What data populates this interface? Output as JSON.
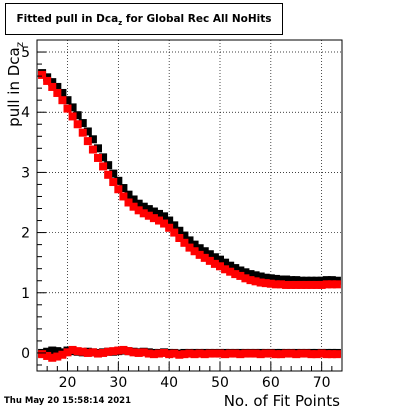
{
  "title": {
    "prefix": "Fitted pull in Dca",
    "subscript": "z",
    "suffix": " for Global Rec All NoHits"
  },
  "timestamp": "Thu May 20 15:58:14 2021",
  "chart_data": {
    "type": "scatter",
    "xlabel": "No. of Fit Points",
    "ylabel": "pull in Dca",
    "ylabel_subscript": "z",
    "xlim": [
      14,
      74
    ],
    "ylim": [
      -0.3,
      5.2
    ],
    "xticks": [
      20,
      30,
      40,
      50,
      60,
      70
    ],
    "yticks": [
      0,
      1,
      2,
      3,
      4,
      5
    ],
    "grid": true,
    "series": [
      {
        "color": "#000000",
        "x": [
          15,
          16,
          17,
          18,
          19,
          20,
          21,
          22,
          23,
          24,
          25,
          26,
          27,
          28,
          29,
          30,
          31,
          32,
          33,
          34,
          35,
          36,
          37,
          38,
          39,
          40,
          41,
          42,
          43,
          44,
          45,
          46,
          47,
          48,
          49,
          50,
          51,
          52,
          53,
          54,
          55,
          56,
          57,
          58,
          59,
          60,
          61,
          62,
          63,
          64,
          65,
          66,
          67,
          68,
          69,
          70,
          71,
          72,
          73
        ],
        "y": [
          4.65,
          4.58,
          4.5,
          4.42,
          4.32,
          4.2,
          4.08,
          3.95,
          3.82,
          3.68,
          3.55,
          3.4,
          3.25,
          3.12,
          2.98,
          2.86,
          2.74,
          2.63,
          2.55,
          2.48,
          2.43,
          2.39,
          2.35,
          2.31,
          2.27,
          2.2,
          2.12,
          2.03,
          1.95,
          1.87,
          1.8,
          1.74,
          1.69,
          1.64,
          1.59,
          1.55,
          1.5,
          1.45,
          1.41,
          1.37,
          1.34,
          1.31,
          1.29,
          1.27,
          1.25,
          1.24,
          1.23,
          1.22,
          1.22,
          1.21,
          1.21,
          1.2,
          1.2,
          1.2,
          1.2,
          1.2,
          1.21,
          1.21,
          1.2
        ]
      },
      {
        "color": "#ff0000",
        "x": [
          15,
          16,
          17,
          18,
          19,
          20,
          21,
          22,
          23,
          24,
          25,
          26,
          27,
          28,
          29,
          30,
          31,
          32,
          33,
          34,
          35,
          36,
          37,
          38,
          39,
          40,
          41,
          42,
          43,
          44,
          45,
          46,
          47,
          48,
          49,
          50,
          51,
          52,
          53,
          54,
          55,
          56,
          57,
          58,
          59,
          60,
          61,
          62,
          63,
          64,
          65,
          66,
          67,
          68,
          69,
          70,
          71,
          72,
          73
        ],
        "y": [
          4.62,
          4.52,
          4.42,
          4.32,
          4.2,
          4.06,
          3.93,
          3.8,
          3.66,
          3.52,
          3.38,
          3.24,
          3.1,
          2.96,
          2.84,
          2.72,
          2.6,
          2.5,
          2.43,
          2.37,
          2.32,
          2.28,
          2.24,
          2.2,
          2.15,
          2.08,
          2.0,
          1.91,
          1.83,
          1.75,
          1.69,
          1.63,
          1.58,
          1.53,
          1.48,
          1.44,
          1.39,
          1.35,
          1.31,
          1.28,
          1.24,
          1.21,
          1.19,
          1.17,
          1.16,
          1.15,
          1.14,
          1.14,
          1.13,
          1.13,
          1.13,
          1.13,
          1.13,
          1.13,
          1.13,
          1.13,
          1.14,
          1.14,
          1.14
        ]
      },
      {
        "color": "#000000",
        "x": [
          15,
          16,
          17,
          18,
          19,
          20,
          21,
          22,
          23,
          24,
          25,
          26,
          27,
          28,
          29,
          30,
          31,
          32,
          33,
          34,
          35,
          36,
          37,
          38,
          39,
          40,
          41,
          42,
          43,
          44,
          45,
          46,
          47,
          48,
          49,
          50,
          51,
          52,
          53,
          54,
          55,
          56,
          57,
          58,
          59,
          60,
          61,
          62,
          63,
          64,
          65,
          66,
          67,
          68,
          69,
          70,
          71,
          72,
          73
        ],
        "y": [
          0.0,
          0.02,
          0.04,
          0.03,
          0.01,
          0.04,
          0.03,
          0.02,
          0.01,
          0.02,
          0.01,
          0.0,
          0.01,
          0.02,
          0.02,
          0.03,
          0.04,
          0.03,
          0.02,
          0.01,
          0.02,
          0.01,
          0.0,
          0.0,
          0.01,
          0.0,
          0.0,
          -0.01,
          0.0,
          0.0,
          0.0,
          0.0,
          0.0,
          0.0,
          0.0,
          0.0,
          0.0,
          0.0,
          0.0,
          0.0,
          0.0,
          0.0,
          0.0,
          0.0,
          0.0,
          0.0,
          0.0,
          0.0,
          0.0,
          0.0,
          0.0,
          0.0,
          0.0,
          0.0,
          0.0,
          0.0,
          0.0,
          0.0,
          0.0
        ]
      },
      {
        "color": "#ff0000",
        "x": [
          15,
          16,
          17,
          18,
          19,
          20,
          21,
          22,
          23,
          24,
          25,
          26,
          27,
          28,
          29,
          30,
          31,
          32,
          33,
          34,
          35,
          36,
          37,
          38,
          39,
          40,
          41,
          42,
          43,
          44,
          45,
          46,
          47,
          48,
          49,
          50,
          51,
          52,
          53,
          54,
          55,
          56,
          57,
          58,
          59,
          60,
          61,
          62,
          63,
          64,
          65,
          66,
          67,
          68,
          69,
          70,
          71,
          72,
          73
        ],
        "y": [
          -0.02,
          -0.05,
          -0.08,
          -0.06,
          -0.03,
          0.01,
          0.05,
          0.03,
          0.02,
          0.0,
          0.01,
          -0.01,
          0.0,
          0.02,
          0.03,
          0.04,
          0.05,
          0.03,
          0.01,
          0.0,
          0.01,
          -0.01,
          -0.02,
          -0.01,
          0.0,
          -0.02,
          -0.01,
          -0.03,
          -0.02,
          -0.01,
          -0.02,
          -0.01,
          -0.02,
          -0.01,
          -0.01,
          -0.01,
          -0.02,
          -0.01,
          -0.01,
          -0.02,
          -0.01,
          -0.01,
          -0.01,
          -0.02,
          -0.01,
          -0.01,
          -0.02,
          -0.02,
          -0.01,
          -0.01,
          -0.02,
          -0.01,
          -0.01,
          -0.02,
          -0.02,
          -0.01,
          -0.02,
          -0.02,
          -0.02
        ]
      }
    ]
  }
}
